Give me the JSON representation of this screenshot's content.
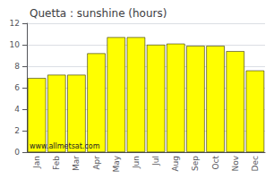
{
  "chart_data": {
    "type": "bar",
    "title": "Quetta : sunshine (hours)",
    "categories": [
      "Jan",
      "Feb",
      "Mar",
      "Apr",
      "May",
      "Jun",
      "Jul",
      "Aug",
      "Sep",
      "Oct",
      "Nov",
      "Dec"
    ],
    "values": [
      6.9,
      7.2,
      7.2,
      9.2,
      10.7,
      10.7,
      10.0,
      10.1,
      9.9,
      9.9,
      9.4,
      7.6
    ],
    "color": "#FFFF00",
    "ylim": [
      0,
      12
    ],
    "yticks": [
      0,
      2,
      4,
      6,
      8,
      10,
      12
    ],
    "grid": true,
    "annotations": [
      "www.allmetsat.com"
    ]
  }
}
